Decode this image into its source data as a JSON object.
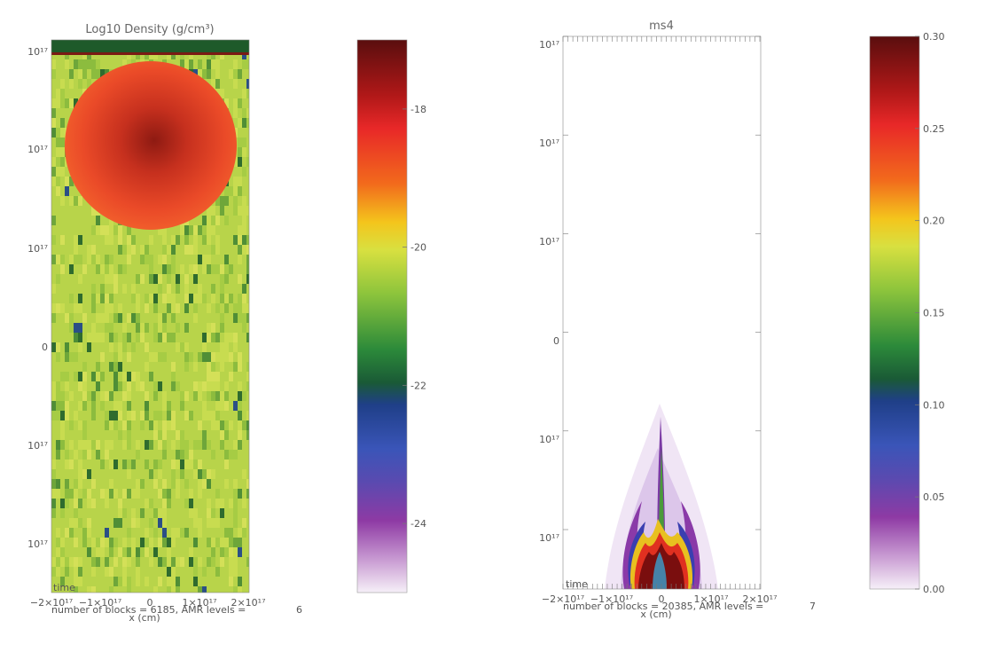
{
  "panels": [
    {
      "title": "Log10 Density (g/cm³)",
      "y_ticks": [
        "10¹⁷",
        "10¹⁷",
        "10¹⁷",
        "0",
        "10¹⁷",
        "10¹⁷"
      ],
      "x_ticks": [
        "−2×10¹⁷",
        "−1×10¹⁷",
        "0",
        "1×10¹⁷",
        "2×10¹⁷"
      ],
      "x_label": "x (cm)",
      "blocks_text": "number of blocks =   6185, AMR levels =",
      "amr_levels": "6",
      "time_text": "time"
    },
    {
      "title": "ms4",
      "y_ticks": [
        "10¹⁷",
        "10¹⁷",
        "10¹⁷",
        "0",
        "10¹⁷",
        "10¹⁷"
      ],
      "x_ticks": [
        "−2×10¹⁷",
        "−1×10¹⁷",
        "0",
        "1×10¹⁷",
        "2×10¹⁷"
      ],
      "x_label": "x (cm)",
      "blocks_text": "number of blocks =  20385, AMR levels =",
      "amr_levels": "7",
      "time_text": "time"
    }
  ],
  "colorbars": [
    {
      "ticks": [
        "-18",
        "-20",
        "-22",
        "-24"
      ],
      "values": [
        -18,
        -20,
        -22,
        -24
      ]
    },
    {
      "ticks": [
        "0.30",
        "0.25",
        "0.20",
        "0.15",
        "0.10",
        "0.05",
        "0.00"
      ],
      "values": [
        0.3,
        0.25,
        0.2,
        0.15,
        0.1,
        0.05,
        0.0
      ]
    }
  ],
  "colors": {
    "field_base": "#b8d44a",
    "field_dark": "#2f6b2e",
    "sphere_center": "#8e1a12",
    "sphere_edge": "#f0502a",
    "top_strip": "#1e5a2a"
  },
  "chart_data": [
    {
      "type": "heatmap",
      "title": "Log10 Density (g/cm³)",
      "xlabel": "x (cm)",
      "ylabel": "",
      "xlim": [
        -2e+17,
        2e+17
      ],
      "colorbar_range": [
        -25,
        -17
      ],
      "colorbar_ticks": [
        -18,
        -20,
        -22,
        -24
      ]
    },
    {
      "type": "heatmap",
      "title": "ms4",
      "xlabel": "x (cm)",
      "ylabel": "",
      "xlim": [
        -2e+17,
        2e+17
      ],
      "colorbar_range": [
        0.0,
        0.3
      ],
      "colorbar_ticks": [
        0.0,
        0.05,
        0.1,
        0.15,
        0.2,
        0.25,
        0.3
      ]
    }
  ]
}
